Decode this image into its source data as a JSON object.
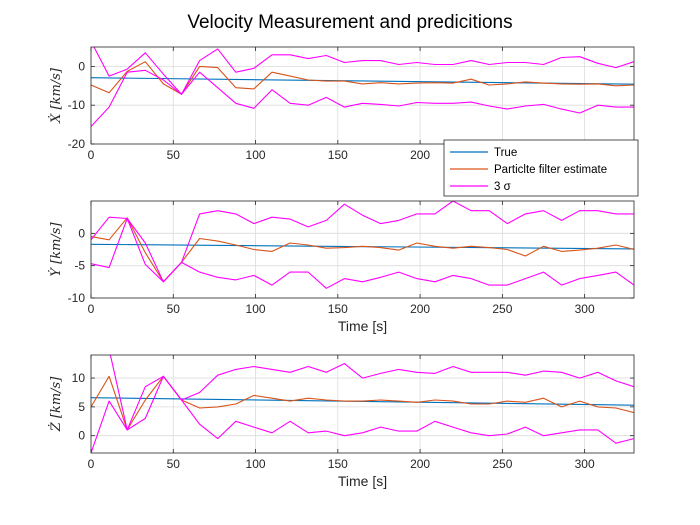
{
  "title": "Velocity Measurement and predicitions",
  "colors": {
    "true": "#0072BD",
    "estimate": "#D95319",
    "sigma": "#FF00FF"
  },
  "legend": {
    "placement": "overlapping first panel, lower right",
    "entries": [
      "True",
      "Particlte filter estimate",
      "3 σ"
    ]
  },
  "chart_data": [
    {
      "type": "line",
      "ylabel": "Ẋ [km/s]",
      "xlabel": "",
      "xlim": [
        0,
        330
      ],
      "ylim": [
        -20,
        5
      ],
      "xticks": [
        0,
        50,
        100,
        150,
        200,
        250,
        300
      ],
      "yticks": [
        0,
        -10,
        -20
      ],
      "grid": true,
      "series": [
        {
          "name": "True",
          "color": "#0072BD",
          "x": [
            0,
            330
          ],
          "y": [
            -2.9,
            -4.6
          ]
        },
        {
          "name": "Particlte filter estimate",
          "color": "#D95319",
          "x": [
            0,
            11,
            22,
            33,
            44,
            55,
            66,
            77,
            88,
            99,
            110,
            121,
            132,
            143,
            154,
            165,
            176,
            187,
            198,
            209,
            220,
            231,
            242,
            253,
            264,
            275,
            286,
            297,
            308,
            319,
            330
          ],
          "y": [
            -4.8,
            -6.8,
            -1.3,
            1.2,
            -4.5,
            -7.2,
            0.0,
            -0.3,
            -5.5,
            -5.8,
            -1.5,
            -2.5,
            -3.5,
            -3.8,
            -3.8,
            -4.5,
            -4.2,
            -4.5,
            -4.3,
            -4.2,
            -4.3,
            -3.3,
            -4.8,
            -4.5,
            -4.0,
            -4.3,
            -4.5,
            -4.6,
            -4.5,
            -5.0,
            -4.8
          ]
        },
        {
          "name": "3 σ",
          "color": "#FF00FF",
          "x": [
            0,
            11,
            22,
            33,
            44,
            55,
            66,
            77,
            88,
            99,
            110,
            121,
            132,
            143,
            154,
            165,
            176,
            187,
            198,
            209,
            220,
            231,
            242,
            253,
            264,
            275,
            286,
            297,
            308,
            319,
            330
          ],
          "y": [
            6.5,
            -2.5,
            -0.7,
            3.5,
            -2.0,
            -7.2,
            1.5,
            4.5,
            -1.5,
            -0.5,
            3.0,
            3.0,
            2.0,
            2.8,
            1.0,
            1.5,
            1.5,
            0.5,
            1.0,
            0.5,
            0.5,
            1.5,
            0.5,
            1.0,
            1.0,
            0.5,
            2.3,
            2.5,
            0.8,
            -0.3,
            1.2
          ]
        },
        {
          "name": "3 σ",
          "color": "#FF00FF",
          "x": [
            0,
            11,
            22,
            33,
            44,
            55,
            66,
            77,
            88,
            99,
            110,
            121,
            132,
            143,
            154,
            165,
            176,
            187,
            198,
            209,
            220,
            231,
            242,
            253,
            264,
            275,
            286,
            297,
            308,
            319,
            330
          ],
          "y": [
            -15.5,
            -10.5,
            -1.5,
            -1.0,
            -3.5,
            -7.2,
            -1.5,
            -5.5,
            -9.5,
            -10.8,
            -6.0,
            -9.5,
            -10.0,
            -8.0,
            -10.5,
            -9.5,
            -9.8,
            -10.2,
            -9.3,
            -9.5,
            -9.5,
            -9.2,
            -10.2,
            -11.0,
            -10.2,
            -9.8,
            -11.0,
            -12.0,
            -10.0,
            -10.5,
            -10.5
          ]
        }
      ]
    },
    {
      "type": "line",
      "ylabel": "Ẏ [km/s]",
      "xlabel": "Time [s]",
      "xlim": [
        0,
        330
      ],
      "ylim": [
        -10,
        5
      ],
      "xticks": [
        0,
        50,
        100,
        150,
        200,
        250,
        300
      ],
      "yticks": [
        0,
        -5,
        -10
      ],
      "grid": true,
      "series": [
        {
          "name": "True",
          "color": "#0072BD",
          "x": [
            0,
            330
          ],
          "y": [
            -1.7,
            -2.4
          ]
        },
        {
          "name": "Particlte filter estimate",
          "color": "#D95319",
          "x": [
            0,
            11,
            22,
            33,
            44,
            55,
            66,
            77,
            88,
            99,
            110,
            121,
            132,
            143,
            154,
            165,
            176,
            187,
            198,
            209,
            220,
            231,
            242,
            253,
            264,
            275,
            286,
            297,
            308,
            319,
            330
          ],
          "y": [
            -0.5,
            -1.0,
            2.4,
            -3.0,
            -7.5,
            -4.5,
            -0.8,
            -1.2,
            -1.8,
            -2.5,
            -2.8,
            -1.5,
            -1.8,
            -2.3,
            -2.2,
            -2.0,
            -2.2,
            -2.6,
            -1.5,
            -2.0,
            -2.3,
            -2.0,
            -2.2,
            -2.5,
            -3.5,
            -2.0,
            -2.8,
            -2.6,
            -2.3,
            -1.8,
            -2.5
          ]
        },
        {
          "name": "3 σ",
          "color": "#FF00FF",
          "x": [
            0,
            11,
            22,
            33,
            44,
            55,
            66,
            77,
            88,
            99,
            110,
            121,
            132,
            143,
            154,
            165,
            176,
            187,
            198,
            209,
            220,
            231,
            242,
            253,
            264,
            275,
            286,
            297,
            308,
            319,
            330
          ],
          "y": [
            -1.0,
            2.5,
            2.3,
            -1.5,
            -7.5,
            -4.5,
            3.0,
            3.5,
            3.0,
            1.5,
            2.5,
            2.2,
            1.0,
            2.0,
            4.5,
            2.8,
            1.5,
            2.0,
            3.0,
            3.0,
            5.0,
            3.5,
            3.5,
            1.5,
            3.0,
            3.5,
            2.0,
            3.5,
            3.5,
            3.0,
            3.0
          ]
        },
        {
          "name": "3 σ",
          "color": "#FF00FF",
          "x": [
            0,
            11,
            22,
            33,
            44,
            55,
            66,
            77,
            88,
            99,
            110,
            121,
            132,
            143,
            154,
            165,
            176,
            187,
            198,
            209,
            220,
            231,
            242,
            253,
            264,
            275,
            286,
            297,
            308,
            319,
            330
          ],
          "y": [
            -4.7,
            -5.3,
            2.3,
            -4.8,
            -7.5,
            -4.5,
            -6.0,
            -6.8,
            -7.2,
            -6.5,
            -8.0,
            -6.0,
            -6.0,
            -8.5,
            -7.0,
            -7.5,
            -6.8,
            -6.0,
            -7.0,
            -7.5,
            -6.5,
            -7.0,
            -8.0,
            -8.0,
            -7.0,
            -6.0,
            -8.0,
            -7.0,
            -6.5,
            -6.0,
            -8.0
          ]
        }
      ]
    },
    {
      "type": "line",
      "ylabel": "Ż [km/s]",
      "xlabel": "Time [s]",
      "xlim": [
        0,
        330
      ],
      "ylim": [
        -3,
        14
      ],
      "xticks": [
        0,
        50,
        100,
        150,
        200,
        250,
        300
      ],
      "yticks": [
        10,
        5,
        0
      ],
      "grid": true,
      "series": [
        {
          "name": "True",
          "color": "#0072BD",
          "x": [
            0,
            330
          ],
          "y": [
            6.6,
            5.3
          ]
        },
        {
          "name": "Particlte filter estimate",
          "color": "#D95319",
          "x": [
            0,
            11,
            22,
            33,
            44,
            55,
            66,
            77,
            88,
            99,
            110,
            121,
            132,
            143,
            154,
            165,
            176,
            187,
            198,
            209,
            220,
            231,
            242,
            253,
            264,
            275,
            286,
            297,
            308,
            319,
            330
          ],
          "y": [
            5.0,
            10.3,
            1.0,
            6.2,
            10.3,
            6.2,
            4.8,
            5.0,
            5.5,
            7.0,
            6.5,
            6.0,
            6.5,
            6.2,
            6.0,
            6.0,
            6.2,
            6.0,
            5.8,
            6.2,
            6.0,
            5.5,
            5.5,
            6.0,
            5.8,
            6.5,
            5.0,
            6.0,
            5.0,
            4.8,
            4.0
          ]
        },
        {
          "name": "3 σ",
          "color": "#FF00FF",
          "x": [
            0,
            11,
            22,
            33,
            44,
            55,
            66,
            77,
            88,
            99,
            110,
            121,
            132,
            143,
            154,
            165,
            176,
            187,
            198,
            209,
            220,
            231,
            242,
            253,
            264,
            275,
            286,
            297,
            308,
            319,
            330
          ],
          "y": [
            14.5,
            15.0,
            1.0,
            8.5,
            10.3,
            6.2,
            7.5,
            10.5,
            11.5,
            12.0,
            11.5,
            11.0,
            12.0,
            11.0,
            12.5,
            10.0,
            10.8,
            11.5,
            11.0,
            10.8,
            12.0,
            11.0,
            11.0,
            11.0,
            10.5,
            11.2,
            11.0,
            10.0,
            11.0,
            9.5,
            8.5
          ]
        },
        {
          "name": "3 σ",
          "color": "#FF00FF",
          "x": [
            0,
            11,
            22,
            33,
            44,
            55,
            66,
            77,
            88,
            99,
            110,
            121,
            132,
            143,
            154,
            165,
            176,
            187,
            198,
            209,
            220,
            231,
            242,
            253,
            264,
            275,
            286,
            297,
            308,
            319,
            330
          ],
          "y": [
            -3.0,
            6.0,
            1.0,
            3.0,
            10.3,
            6.2,
            2.0,
            -0.5,
            2.5,
            1.5,
            0.5,
            2.5,
            0.5,
            0.8,
            0.0,
            0.5,
            1.5,
            0.8,
            0.8,
            2.5,
            1.5,
            0.5,
            0.0,
            0.3,
            1.5,
            0.0,
            0.5,
            1.0,
            1.0,
            -1.3,
            -0.5
          ]
        }
      ]
    }
  ]
}
